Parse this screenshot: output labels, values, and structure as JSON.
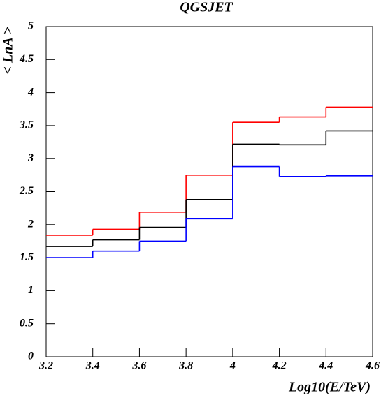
{
  "chart_data": {
    "type": "histogram",
    "title": "QGSJET",
    "x_label": "Log10(E/TeV)",
    "y_label": "< LnA >",
    "bins": [
      3.2,
      3.4,
      3.6,
      3.8,
      4.0,
      4.2,
      4.4,
      4.6
    ],
    "series": [
      {
        "color": "#ff0000",
        "values": [
          1.84,
          1.93,
          2.19,
          2.75,
          3.55,
          3.63,
          3.78
        ]
      },
      {
        "color": "#000000",
        "values": [
          1.67,
          1.77,
          1.96,
          2.38,
          3.22,
          3.21,
          3.42
        ]
      },
      {
        "color": "#0000ff",
        "values": [
          1.5,
          1.6,
          1.75,
          2.09,
          2.88,
          2.73,
          2.74
        ]
      }
    ],
    "xlim": [
      3.2,
      4.6
    ],
    "xticks": [
      3.2,
      3.4,
      3.6,
      3.8,
      4,
      4.2,
      4.4,
      4.6
    ],
    "ylim": [
      0,
      5
    ],
    "yticks": [
      0,
      0.5,
      1,
      1.5,
      2,
      2.5,
      3,
      3.5,
      4,
      4.5,
      5
    ]
  }
}
